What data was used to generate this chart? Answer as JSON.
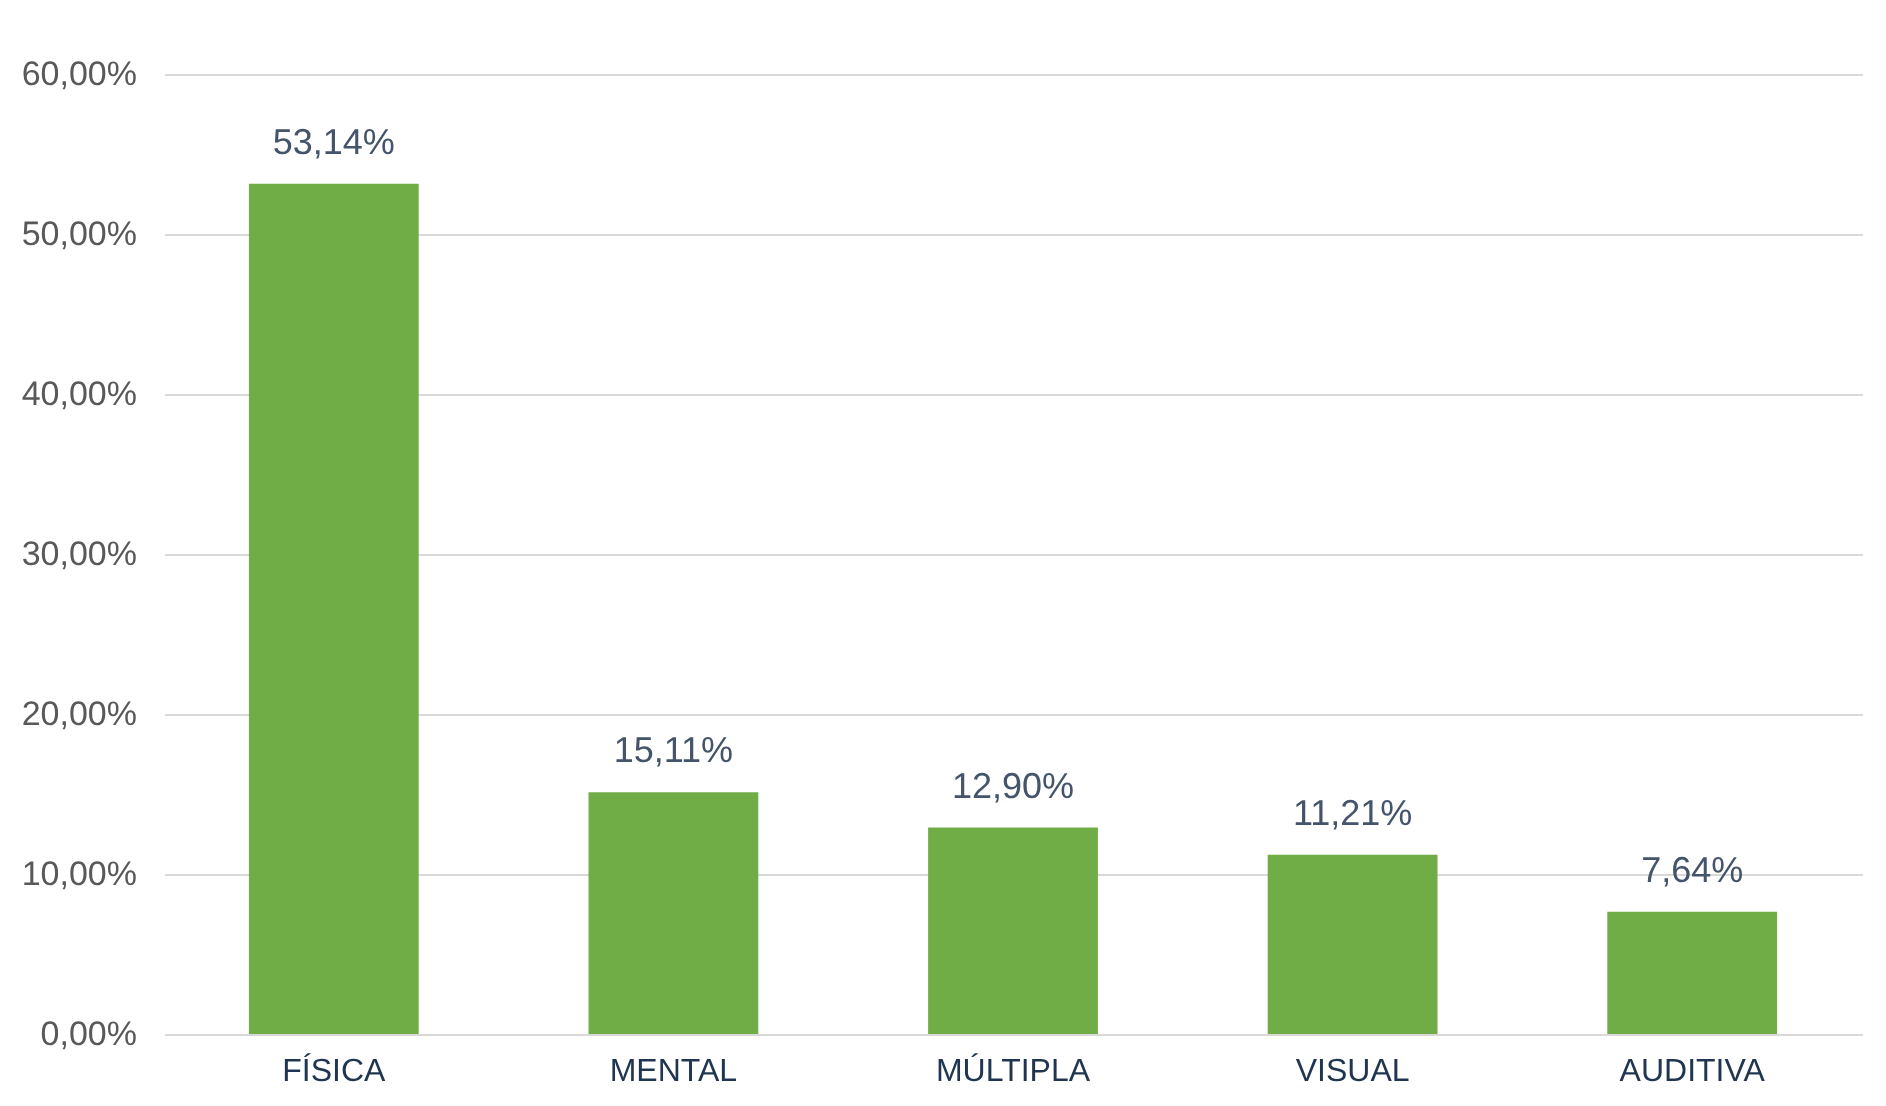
{
  "chart_data": {
    "type": "bar",
    "categories": [
      "FÍSICA",
      "MENTAL",
      "MÚLTIPLA",
      "VISUAL",
      "AUDITIVA"
    ],
    "values": [
      53.14,
      15.11,
      12.9,
      11.21,
      7.64
    ],
    "value_labels": [
      "53,14%",
      "15,11%",
      "12,90%",
      "11,21%",
      "7,64%"
    ],
    "color": "#70ad47",
    "ylim": [
      0,
      60
    ],
    "yticks": [
      {
        "value": 0,
        "label": "0,00%"
      },
      {
        "value": 10,
        "label": "10,00%"
      },
      {
        "value": 20,
        "label": "20,00%"
      },
      {
        "value": 30,
        "label": "30,00%"
      },
      {
        "value": 40,
        "label": "40,00%"
      },
      {
        "value": 50,
        "label": "50,00%"
      },
      {
        "value": 60,
        "label": "60,00%"
      }
    ],
    "grid": "y"
  }
}
